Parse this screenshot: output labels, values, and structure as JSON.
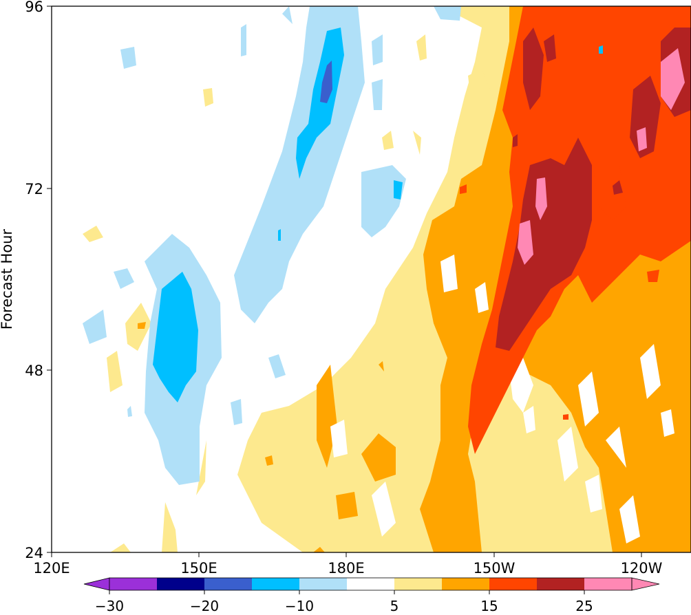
{
  "chart_data": {
    "type": "heatmap",
    "title": "",
    "xlabel": "",
    "ylabel": "Forecast Hour",
    "x_ticks": [
      "120E",
      "150E",
      "180E",
      "150W",
      "120W"
    ],
    "x_tick_values": [
      120,
      150,
      180,
      210,
      240
    ],
    "xlim": [
      120,
      250
    ],
    "y_ticks": [
      "24",
      "48",
      "72",
      "96"
    ],
    "y_tick_values": [
      24,
      48,
      72,
      96
    ],
    "ylim": [
      24,
      96
    ],
    "levels": [
      -30,
      -25,
      -20,
      -15,
      -10,
      -5,
      5,
      10,
      15,
      20,
      25,
      30
    ],
    "colorbar_ticks": [
      "−30",
      "−20",
      "−10",
      "5",
      "15",
      "25"
    ],
    "colorbar_tick_values": [
      -30,
      -20,
      -10,
      5,
      15,
      25
    ],
    "colorbar_extend": "both",
    "colors": {
      "below_-30": "#9b30d9",
      "-30_-25": "#9b30d9",
      "-25_-20": "#00008b",
      "-20_-15": "#3a5fcd",
      "-15_-10": "#00bfff",
      "-10_-5": "#b0e0f8",
      "-5_5": "#ffffff",
      "5_10": "#fde98e",
      "10_15": "#ffa500",
      "15_20": "#ff4500",
      "20_25": "#b22222",
      "25_30": "#ff88b4",
      "above_30": "#ff88b4"
    },
    "legend": "none",
    "grid": false
  }
}
